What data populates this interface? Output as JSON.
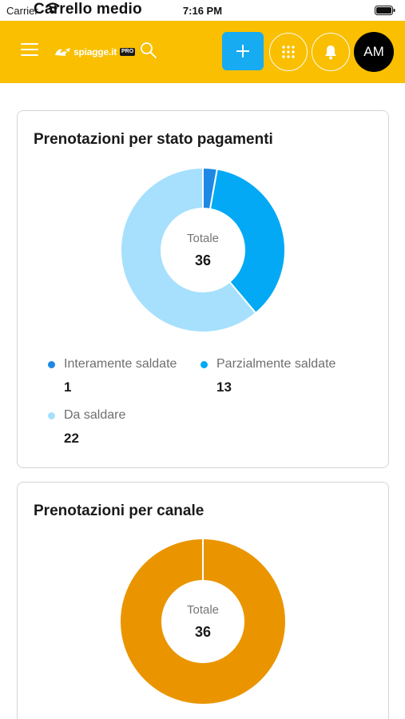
{
  "status_bar": {
    "carrier": "Carrier",
    "screen_title": "Carrello medio",
    "time": "7:16 PM"
  },
  "app_bar": {
    "logo_text": "spiagge.it",
    "logo_badge": "PRO",
    "avatar_initials": "AM",
    "color": "#f9bf00",
    "add_button_color": "#17abf1",
    "icons": [
      "menu-icon",
      "search-icon",
      "plus-icon",
      "apps-grid-icon",
      "bell-icon"
    ]
  },
  "payments_card": {
    "title": "Prenotazioni per stato pagamenti",
    "total_label": "Totale",
    "total_value": "36",
    "legend": [
      {
        "label": "Interamente saldate",
        "value": "1",
        "color": "#1e88e5"
      },
      {
        "label": "Parzialmente saldate",
        "value": "13",
        "color": "#03a9f4"
      },
      {
        "label": "Da saldare",
        "value": "22",
        "color": "#a6e0fd"
      }
    ]
  },
  "channel_card": {
    "title": "Prenotazioni per canale",
    "total_label": "Totale",
    "total_value": "36",
    "segments": [
      {
        "value": 36,
        "color": "#ea9500"
      }
    ]
  }
}
